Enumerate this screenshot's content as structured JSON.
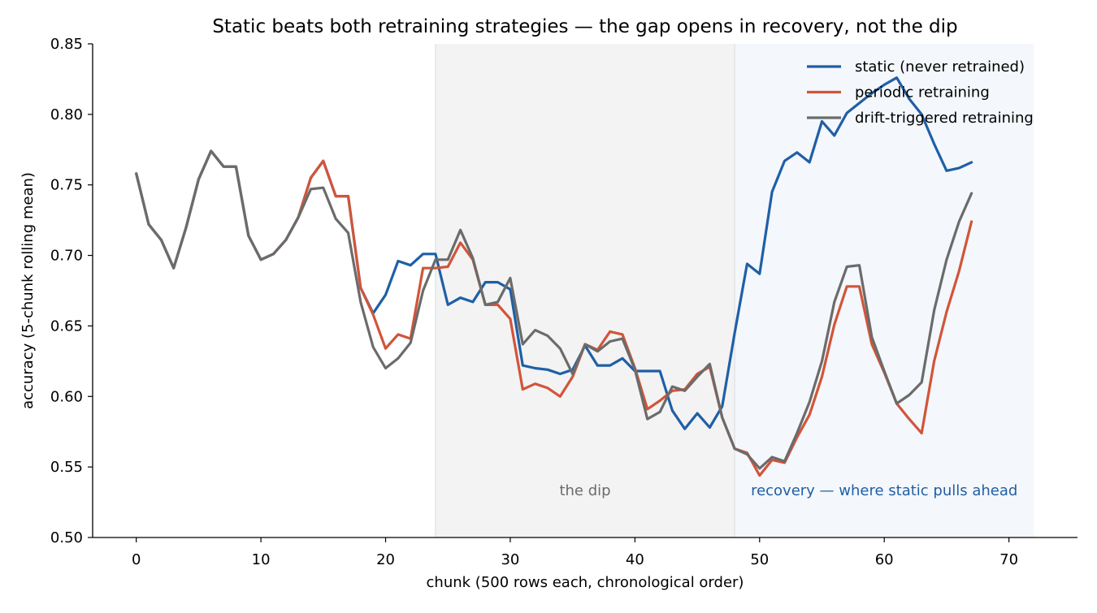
{
  "chart_data": {
    "type": "line",
    "title": "Static beats both retraining strategies — the gap opens in recovery, not the dip",
    "xlabel": "chunk (500 rows each, chronological order)",
    "ylabel": "accuracy (5-chunk rolling mean)",
    "xlim": [
      -3.5,
      75.5
    ],
    "ylim": [
      0.5,
      0.85
    ],
    "xticks": [
      0,
      10,
      20,
      30,
      40,
      50,
      60,
      70
    ],
    "yticks": [
      0.5,
      0.55,
      0.6,
      0.65,
      0.7,
      0.75,
      0.8,
      0.85
    ],
    "xtick_labels": [
      "0",
      "10",
      "20",
      "30",
      "40",
      "50",
      "60",
      "70"
    ],
    "ytick_labels": [
      "0.50",
      "0.55",
      "0.60",
      "0.65",
      "0.70",
      "0.75",
      "0.80",
      "0.85"
    ],
    "grid": false,
    "legend_position": "top-right",
    "regions": [
      {
        "x_start": 24,
        "x_end": 48,
        "label": "the dip",
        "color": "#e4e4e4",
        "label_color": "#6b6b6b"
      },
      {
        "x_start": 48,
        "x_end": 72,
        "label": "recovery — where static pulls ahead",
        "color": "#e6eef6",
        "label_color": "#1f5fa6"
      }
    ],
    "x": [
      0,
      1,
      2,
      3,
      4,
      5,
      6,
      7,
      8,
      9,
      10,
      11,
      12,
      13,
      14,
      15,
      16,
      17,
      18,
      19,
      20,
      21,
      22,
      23,
      24,
      25,
      26,
      27,
      28,
      29,
      30,
      31,
      32,
      33,
      34,
      35,
      36,
      37,
      38,
      39,
      40,
      41,
      42,
      43,
      44,
      45,
      46,
      47,
      48,
      49,
      50,
      51,
      52,
      53,
      54,
      55,
      56,
      57,
      58,
      59,
      60,
      61,
      62,
      63,
      64,
      65,
      66,
      67
    ],
    "series": [
      {
        "name": "static (never retrained)",
        "color": "#1f5fa6",
        "values": [
          0.758,
          0.722,
          0.711,
          0.691,
          0.72,
          0.754,
          0.774,
          0.763,
          0.763,
          0.714,
          0.697,
          0.701,
          0.711,
          0.727,
          0.755,
          0.767,
          0.742,
          0.742,
          0.677,
          0.659,
          0.672,
          0.696,
          0.693,
          0.701,
          0.701,
          0.665,
          0.67,
          0.667,
          0.681,
          0.681,
          0.676,
          0.622,
          0.62,
          0.619,
          0.616,
          0.619,
          0.636,
          0.622,
          0.622,
          0.627,
          0.618,
          0.618,
          0.618,
          0.59,
          0.577,
          0.588,
          0.578,
          0.593,
          0.645,
          0.694,
          0.687,
          0.745,
          0.767,
          0.773,
          0.766,
          0.795,
          0.785,
          0.801,
          0.808,
          0.815,
          0.821,
          0.826,
          0.811,
          0.8,
          0.779,
          0.76,
          0.762,
          0.766
        ]
      },
      {
        "name": "periodic retraining",
        "color": "#d1553a",
        "values": [
          0.758,
          0.722,
          0.711,
          0.691,
          0.72,
          0.754,
          0.774,
          0.763,
          0.763,
          0.714,
          0.697,
          0.701,
          0.711,
          0.727,
          0.755,
          0.767,
          0.742,
          0.742,
          0.677,
          0.658,
          0.634,
          0.644,
          0.641,
          0.691,
          0.691,
          0.692,
          0.709,
          0.697,
          0.665,
          0.665,
          0.655,
          0.605,
          0.609,
          0.606,
          0.6,
          0.614,
          0.637,
          0.633,
          0.646,
          0.644,
          0.62,
          0.591,
          0.597,
          0.604,
          0.605,
          0.616,
          0.621,
          0.585,
          0.563,
          0.56,
          0.544,
          0.555,
          0.553,
          0.571,
          0.587,
          0.614,
          0.651,
          0.678,
          0.678,
          0.637,
          0.617,
          0.595,
          0.584,
          0.574,
          0.625,
          0.66,
          0.689,
          0.724
        ]
      },
      {
        "name": "drift-triggered retraining",
        "color": "#6b6b6b",
        "values": [
          0.758,
          0.722,
          0.711,
          0.691,
          0.72,
          0.754,
          0.774,
          0.763,
          0.763,
          0.714,
          0.697,
          0.701,
          0.711,
          0.727,
          0.747,
          0.748,
          0.726,
          0.716,
          0.667,
          0.635,
          0.62,
          0.627,
          0.638,
          0.675,
          0.697,
          0.697,
          0.718,
          0.698,
          0.665,
          0.667,
          0.684,
          0.637,
          0.647,
          0.643,
          0.634,
          0.616,
          0.637,
          0.632,
          0.639,
          0.641,
          0.619,
          0.584,
          0.589,
          0.607,
          0.604,
          0.614,
          0.623,
          0.585,
          0.563,
          0.559,
          0.549,
          0.557,
          0.554,
          0.574,
          0.596,
          0.625,
          0.667,
          0.692,
          0.693,
          0.642,
          0.618,
          0.595,
          0.601,
          0.61,
          0.661,
          0.697,
          0.724,
          0.744
        ]
      }
    ]
  }
}
